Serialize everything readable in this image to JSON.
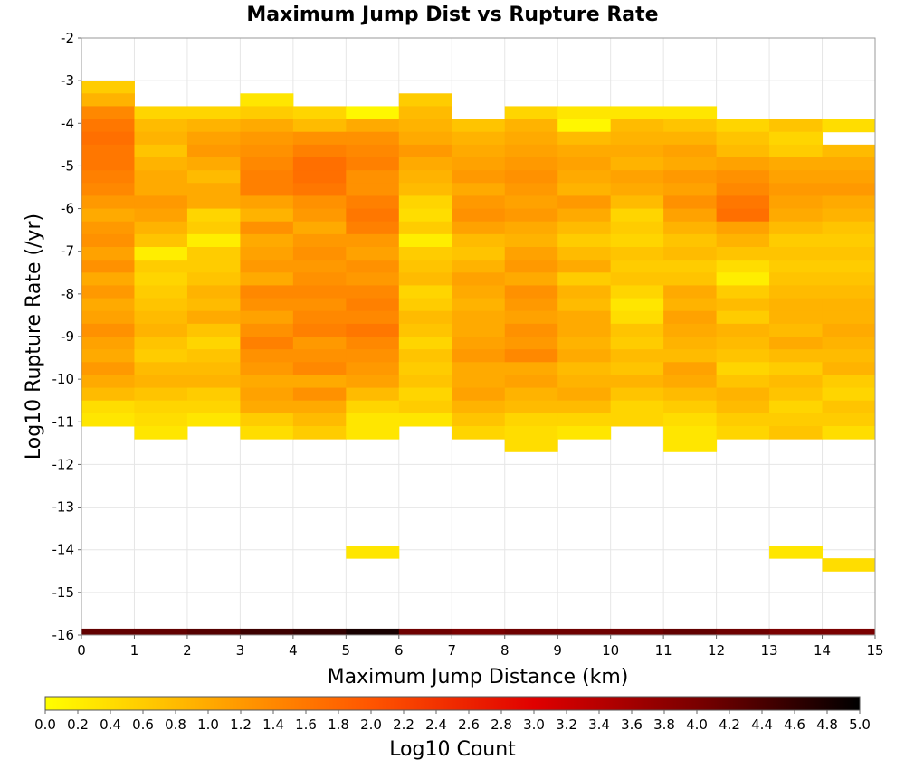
{
  "chart_data": {
    "type": "heatmap",
    "title": "Maximum Jump Dist vs Rupture Rate",
    "xlabel": "Maximum Jump Distance (km)",
    "ylabel": "Log10 Rupture Rate (/yr)",
    "xlim": [
      0,
      15
    ],
    "ylim": [
      -16,
      -2
    ],
    "x_ticks": [
      "0",
      "1",
      "2",
      "3",
      "4",
      "5",
      "6",
      "7",
      "8",
      "9",
      "10",
      "11",
      "12",
      "13",
      "14",
      "15"
    ],
    "y_ticks": [
      "-2",
      "-3",
      "-4",
      "-5",
      "-6",
      "-7",
      "-8",
      "-9",
      "-10",
      "-11",
      "-12",
      "-13",
      "-14",
      "-15",
      "-16"
    ],
    "grid": true,
    "x_bin_width": 1,
    "y_bin_height": 0.3,
    "color_scale": {
      "label": "Log10 Count",
      "min": 0.0,
      "max": 5.0,
      "ticks": [
        "0.0",
        "0.2",
        "0.4",
        "0.6",
        "0.8",
        "1.0",
        "1.2",
        "1.4",
        "1.6",
        "1.8",
        "2.0",
        "2.2",
        "2.4",
        "2.6",
        "2.8",
        "3.0",
        "3.2",
        "3.4",
        "3.6",
        "3.8",
        "4.0",
        "4.2",
        "4.4",
        "4.6",
        "4.8",
        "5.0"
      ],
      "colors": [
        "#ffff00",
        "#ffaa00",
        "#ff5500",
        "#e00000",
        "#7a0000",
        "#000000"
      ]
    },
    "columns": [
      {
        "x": 0,
        "y_top": -3.0,
        "values": [
          0.6,
          0.9,
          1.4,
          1.6,
          1.7,
          1.6,
          1.6,
          1.5,
          1.4,
          1.2,
          1.0,
          1.2,
          1.3,
          1.1,
          1.3,
          1.0,
          1.2,
          1.0,
          1.1,
          1.3,
          1.1,
          1.0,
          1.2,
          1.0,
          0.8,
          0.4,
          0.3
        ]
      },
      {
        "x": 1,
        "y_top": -3.6,
        "values": [
          0.5,
          0.8,
          0.9,
          0.7,
          0.9,
          1.0,
          1.0,
          1.2,
          1.1,
          0.9,
          0.7,
          0.2,
          0.6,
          0.5,
          0.6,
          0.7,
          0.8,
          0.9,
          0.7,
          0.6,
          0.8,
          0.9,
          0.7,
          0.5,
          0.4,
          0.3
        ]
      },
      {
        "x": 2,
        "y_top": -3.6,
        "values": [
          0.5,
          0.9,
          1.1,
          1.2,
          1.0,
          0.8,
          1.0,
          1.0,
          0.5,
          0.6,
          0.2,
          0.6,
          0.6,
          0.7,
          0.9,
          0.8,
          1.0,
          0.7,
          0.5,
          0.7,
          0.8,
          0.9,
          0.6,
          0.5,
          0.3
        ]
      },
      {
        "x": 3,
        "y_top": -3.3,
        "values": [
          0.3,
          0.6,
          1.0,
          1.2,
          1.3,
          1.4,
          1.5,
          1.5,
          1.1,
          0.9,
          1.3,
          1.0,
          1.1,
          1.2,
          1.0,
          1.4,
          1.3,
          1.1,
          1.3,
          1.5,
          1.3,
          1.2,
          1.0,
          1.1,
          1.0,
          0.6,
          0.4
        ]
      },
      {
        "x": 4,
        "y_top": -3.6,
        "values": [
          0.5,
          0.8,
          1.3,
          1.5,
          1.7,
          1.7,
          1.6,
          1.3,
          1.2,
          1.0,
          1.2,
          1.3,
          1.2,
          1.3,
          1.4,
          1.3,
          1.4,
          1.5,
          1.2,
          1.3,
          1.4,
          1.0,
          1.3,
          1.0,
          0.8,
          0.6
        ]
      },
      {
        "x": 5,
        "y_top": -3.6,
        "values": [
          0.1,
          1.0,
          1.3,
          1.4,
          1.5,
          1.3,
          1.3,
          1.5,
          1.6,
          1.5,
          1.2,
          1.1,
          1.3,
          1.2,
          1.4,
          1.5,
          1.4,
          1.6,
          1.4,
          1.3,
          1.2,
          1.1,
          0.8,
          0.5,
          0.3,
          0.3
        ],
        "extra": [
          {
            "y_top": -13.9,
            "value": 0.3
          }
        ]
      },
      {
        "x": 6,
        "y_top": -3.3,
        "values": [
          0.6,
          0.8,
          0.9,
          1.0,
          1.2,
          1.0,
          0.9,
          0.8,
          0.5,
          0.4,
          0.6,
          0.2,
          0.6,
          0.7,
          0.8,
          0.5,
          0.6,
          0.8,
          0.7,
          0.5,
          0.7,
          0.6,
          0.7,
          0.5,
          0.6,
          0.3
        ]
      },
      {
        "x": 7,
        "y_top": -3.9,
        "values": [
          0.7,
          0.9,
          1.0,
          1.1,
          1.2,
          1.0,
          1.2,
          1.3,
          1.1,
          0.8,
          0.7,
          0.9,
          1.1,
          1.0,
          0.9,
          1.0,
          1.0,
          1.1,
          1.2,
          1.0,
          1.0,
          1.1,
          0.9,
          0.7,
          0.5
        ]
      },
      {
        "x": 8,
        "y_top": -3.6,
        "values": [
          0.5,
          0.9,
          1.0,
          1.1,
          1.2,
          1.3,
          1.2,
          1.1,
          1.2,
          1.0,
          0.9,
          1.1,
          1.2,
          1.0,
          1.3,
          1.2,
          1.1,
          1.3,
          1.2,
          1.4,
          1.0,
          1.1,
          0.9,
          0.8,
          0.5,
          0.4,
          0.4
        ]
      },
      {
        "x": 9,
        "y_top": -3.6,
        "values": [
          0.3,
          0.1,
          0.8,
          1.0,
          1.1,
          1.0,
          0.9,
          1.2,
          1.0,
          0.8,
          0.6,
          0.8,
          1.0,
          0.6,
          0.9,
          0.8,
          1.0,
          1.0,
          0.9,
          1.0,
          0.8,
          0.9,
          1.0,
          0.8,
          0.5,
          0.3
        ]
      },
      {
        "x": 10,
        "y_top": -3.6,
        "values": [
          0.3,
          0.8,
          0.9,
          1.0,
          0.9,
          1.1,
          1.0,
          0.8,
          0.5,
          0.6,
          0.5,
          0.7,
          0.6,
          0.7,
          0.5,
          0.3,
          0.4,
          0.7,
          0.6,
          0.8,
          0.7,
          0.9,
          0.7,
          0.5,
          0.5
        ]
      },
      {
        "x": 11,
        "y_top": -3.6,
        "values": [
          0.3,
          0.7,
          0.9,
          1.1,
          1.0,
          1.2,
          1.1,
          1.3,
          1.1,
          0.9,
          0.7,
          0.8,
          0.6,
          0.7,
          1.0,
          0.9,
          1.1,
          1.0,
          0.9,
          0.8,
          1.1,
          1.0,
          0.8,
          0.6,
          0.4,
          0.3,
          0.3
        ]
      },
      {
        "x": 12,
        "y_top": -3.9,
        "values": [
          0.5,
          0.7,
          0.8,
          1.1,
          1.3,
          1.4,
          1.6,
          1.7,
          1.1,
          0.9,
          0.7,
          0.4,
          0.2,
          0.6,
          0.8,
          0.6,
          0.9,
          0.8,
          0.7,
          0.5,
          0.7,
          0.9,
          0.8,
          0.6,
          0.5
        ]
      },
      {
        "x": 13,
        "y_top": -3.9,
        "values": [
          0.7,
          0.5,
          0.6,
          1.0,
          1.1,
          1.2,
          1.1,
          1.0,
          0.8,
          0.6,
          0.7,
          0.6,
          0.7,
          0.8,
          0.9,
          0.9,
          0.8,
          1.0,
          0.8,
          0.6,
          0.8,
          0.7,
          0.5,
          0.6,
          0.7
        ],
        "extra": [
          {
            "y_top": -13.9,
            "value": 0.3
          }
        ]
      },
      {
        "x": 14,
        "y_top": -3.9,
        "values": [
          0.4,
          null,
          0.8,
          1.0,
          1.1,
          1.2,
          1.0,
          0.9,
          0.7,
          0.6,
          0.7,
          0.6,
          0.7,
          0.8,
          0.9,
          0.9,
          1.0,
          0.9,
          0.8,
          0.9,
          0.6,
          0.5,
          0.7,
          0.6,
          0.4
        ],
        "extra": [
          {
            "y_top": -14.2,
            "value": 0.4
          }
        ]
      }
    ],
    "bottom_row": {
      "y_top": -15.85,
      "values": [
        4.2,
        4.2,
        4.3,
        4.5,
        4.6,
        4.8,
        4.1,
        4.0,
        4.1,
        4.1,
        4.1,
        4.2,
        4.1,
        4.0,
        4.0
      ]
    }
  }
}
